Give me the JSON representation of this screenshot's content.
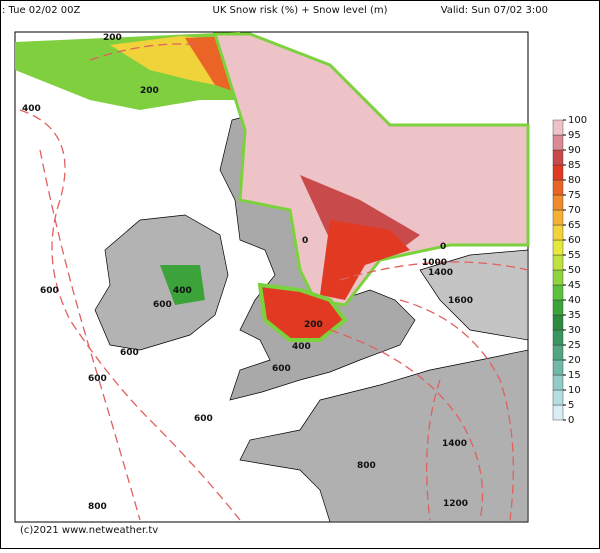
{
  "header": {
    "run": ": Tue 02/02 00Z",
    "title": "UK Snow risk (%) + Snow level (m)",
    "valid": "Valid: Sun 07/02 3:00"
  },
  "colorbar": {
    "ticks": [
      0,
      5,
      10,
      15,
      20,
      25,
      30,
      35,
      40,
      45,
      50,
      55,
      60,
      65,
      70,
      75,
      80,
      85,
      90,
      95,
      100
    ],
    "colors": [
      "#d8eef2",
      "#b4dedf",
      "#93cbc6",
      "#72b8a6",
      "#52a583",
      "#3a9660",
      "#2f8a3e",
      "#3ba33a",
      "#5cc13c",
      "#8fd43e",
      "#c0e23e",
      "#e6e93c",
      "#f6d23a",
      "#f5b133",
      "#f08a2c",
      "#ea6426",
      "#e23a22",
      "#c94a4a",
      "#d98a95",
      "#edc3c8"
    ]
  },
  "contour_labels": [
    200,
    200,
    400,
    600,
    400,
    600,
    600,
    600,
    600,
    800,
    800,
    200,
    400,
    600,
    1000,
    1400,
    1600,
    1400,
    1200,
    0,
    0
  ],
  "footer": {
    "copyright": "(c)2021  www.netweather.tv"
  }
}
